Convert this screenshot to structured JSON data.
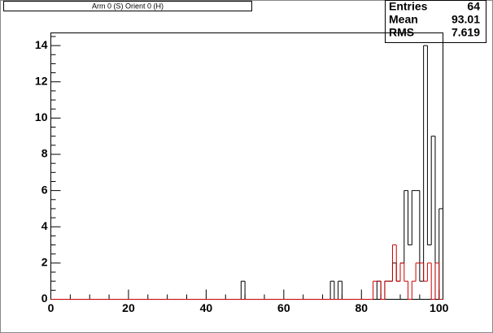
{
  "chart_data": {
    "type": "histogram",
    "title": "Arm 0 (S) Orient 0 (H)",
    "stats": {
      "labels": [
        "Entries",
        "Mean",
        "RMS"
      ],
      "values": [
        64,
        93.01,
        7.619
      ]
    },
    "bins": [
      0,
      1,
      2,
      3,
      4,
      5,
      6,
      7,
      8,
      9,
      10,
      11,
      12,
      13,
      14,
      15,
      16,
      17,
      18,
      19,
      20,
      21,
      22,
      23,
      24,
      25,
      26,
      27,
      28,
      29,
      30,
      31,
      32,
      33,
      34,
      35,
      36,
      37,
      38,
      39,
      40,
      41,
      42,
      43,
      44,
      45,
      46,
      47,
      48,
      49,
      50,
      51,
      52,
      53,
      54,
      55,
      56,
      57,
      58,
      59,
      60,
      61,
      62,
      63,
      64,
      65,
      66,
      67,
      68,
      69,
      70,
      71,
      72,
      73,
      74,
      75,
      76,
      77,
      78,
      79,
      80,
      81,
      82,
      83,
      84,
      85,
      86,
      87,
      88,
      89,
      90,
      91,
      92,
      93,
      94,
      95,
      96,
      97,
      98,
      99,
      100,
      101
    ],
    "series": [
      {
        "color": "#000000",
        "values": [
          0,
          0,
          0,
          0,
          0,
          0,
          0,
          0,
          0,
          0,
          0,
          0,
          0,
          0,
          0,
          0,
          0,
          0,
          0,
          0,
          0,
          0,
          0,
          0,
          0,
          0,
          0,
          0,
          0,
          0,
          0,
          0,
          0,
          0,
          0,
          0,
          0,
          0,
          0,
          0,
          0,
          0,
          0,
          0,
          0,
          0,
          0,
          0,
          0,
          1,
          0,
          0,
          0,
          0,
          0,
          0,
          0,
          0,
          0,
          0,
          0,
          0,
          0,
          0,
          0,
          0,
          0,
          0,
          0,
          0,
          0,
          0,
          1,
          0,
          1,
          0,
          0,
          0,
          0,
          0,
          0,
          0,
          0,
          0,
          1,
          0,
          1,
          1,
          2,
          1,
          2,
          6,
          3,
          6,
          6,
          1,
          14,
          3,
          9,
          0,
          5
        ]
      },
      {
        "color": "#cc0000",
        "values": [
          0,
          0,
          0,
          0,
          0,
          0,
          0,
          0,
          0,
          0,
          0,
          0,
          0,
          0,
          0,
          0,
          0,
          0,
          0,
          0,
          0,
          0,
          0,
          0,
          0,
          0,
          0,
          0,
          0,
          0,
          0,
          0,
          0,
          0,
          0,
          0,
          0,
          0,
          0,
          0,
          0,
          0,
          0,
          0,
          0,
          0,
          0,
          0,
          0,
          0,
          0,
          0,
          0,
          0,
          0,
          0,
          0,
          0,
          0,
          0,
          0,
          0,
          0,
          0,
          0,
          0,
          0,
          0,
          0,
          0,
          0,
          0,
          0,
          0,
          0,
          0,
          0,
          0,
          0,
          0,
          0,
          0,
          0,
          1,
          1,
          0,
          1,
          1,
          3,
          1,
          2,
          1,
          0,
          1,
          2,
          2,
          1,
          2,
          0,
          2,
          0
        ]
      }
    ],
    "xlim": [
      0,
      101
    ],
    "xticks": [
      0,
      20,
      40,
      60,
      80,
      100
    ],
    "ylim": [
      0,
      14.7
    ],
    "yticks": [
      0,
      2,
      4,
      6,
      8,
      10,
      12,
      14
    ]
  }
}
